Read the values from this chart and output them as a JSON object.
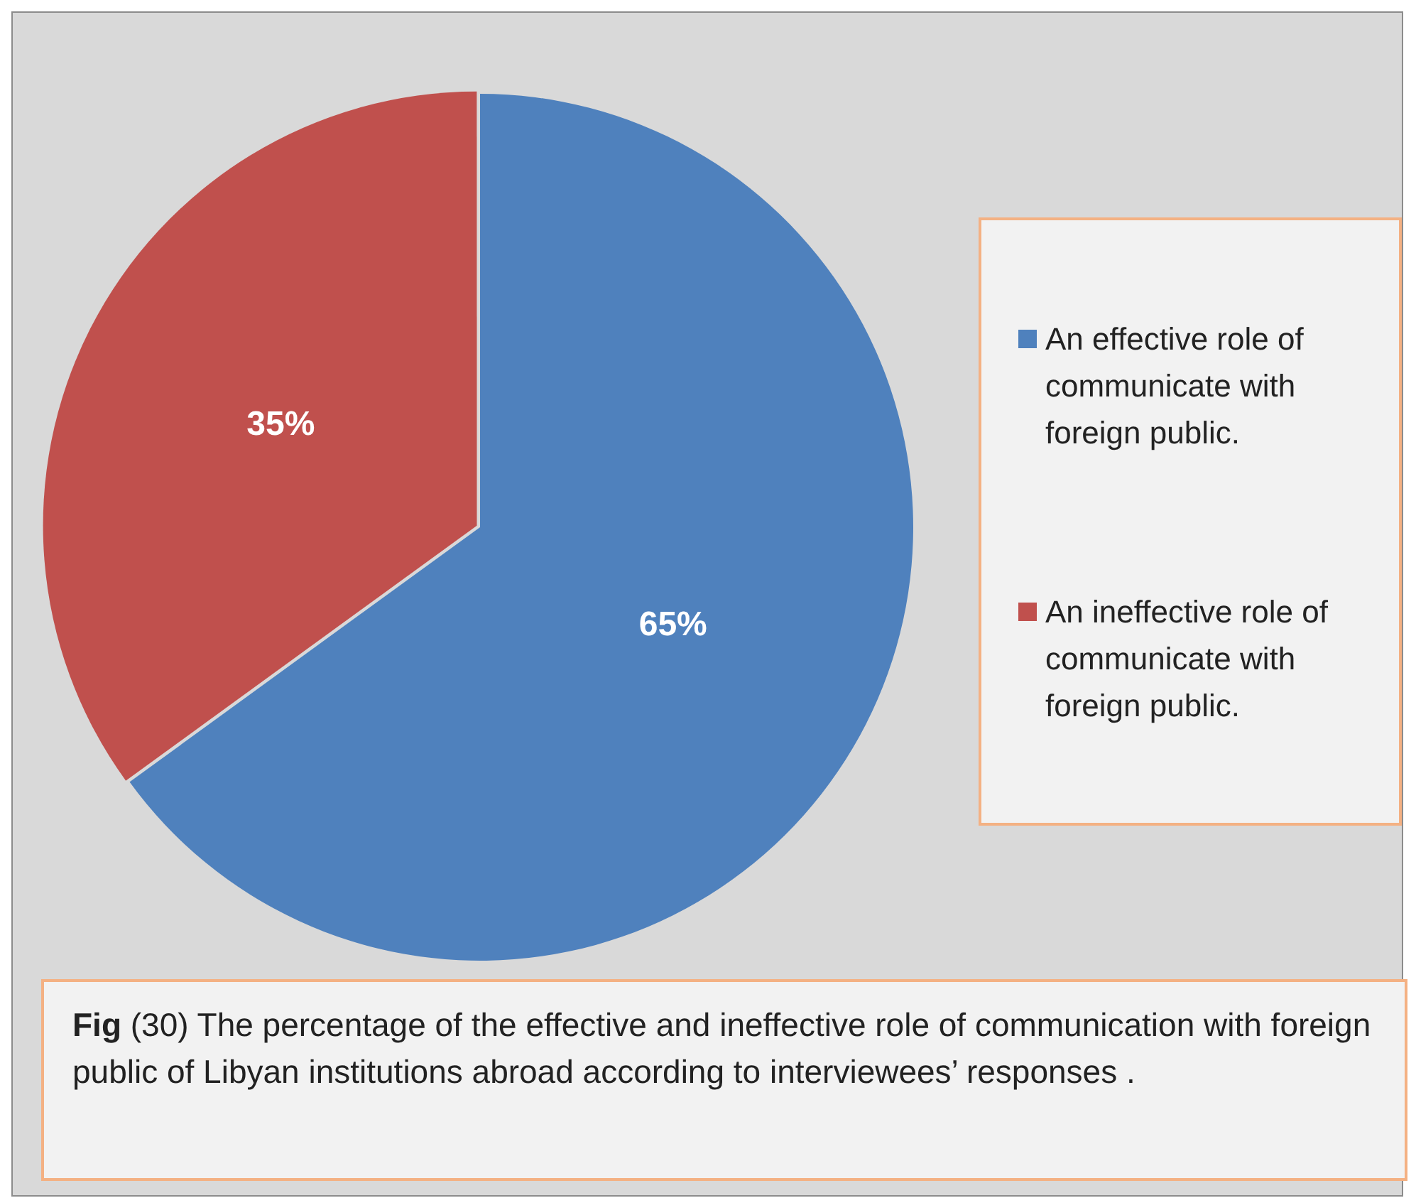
{
  "chart_data": {
    "type": "pie",
    "categories": [
      "An effective role of communicate with foreign public.",
      "An ineffective role of communicate with foreign public."
    ],
    "values": [
      65,
      35
    ],
    "colors": [
      "#4f81bd",
      "#c0504d"
    ],
    "value_labels": [
      "65%",
      "35%"
    ],
    "legend": "right",
    "annotations": [
      "Fig (30) The percentage of the effective and ineffective role of communication with foreign public of Libyan institutions abroad according to interviewees’ responses ."
    ]
  }
}
